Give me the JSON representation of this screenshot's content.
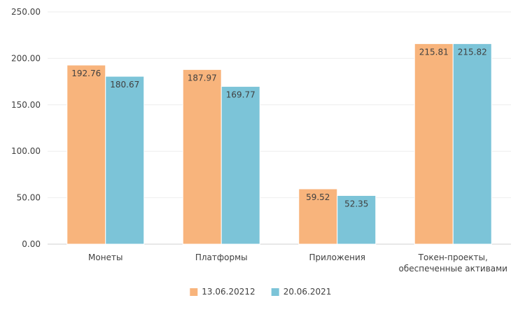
{
  "chart_data": {
    "type": "bar",
    "categories": [
      [
        "Монеты"
      ],
      [
        "Платформы"
      ],
      [
        "Приложения"
      ],
      [
        "Токен-проекты,",
        "обеспеченные активами"
      ]
    ],
    "series": [
      {
        "name": "13.06.20212",
        "color": "#F8B47C",
        "values": [
          192.76,
          187.97,
          59.52,
          215.81
        ]
      },
      {
        "name": "20.06.2021",
        "color": "#7CC4D8",
        "values": [
          180.67,
          169.77,
          52.35,
          215.82
        ]
      }
    ],
    "ylim": [
      0,
      250
    ],
    "yticks": [
      "0.00",
      "50.00",
      "100.00",
      "150.00",
      "200.00",
      "250.00"
    ],
    "grid": true,
    "legend": "bottom"
  }
}
